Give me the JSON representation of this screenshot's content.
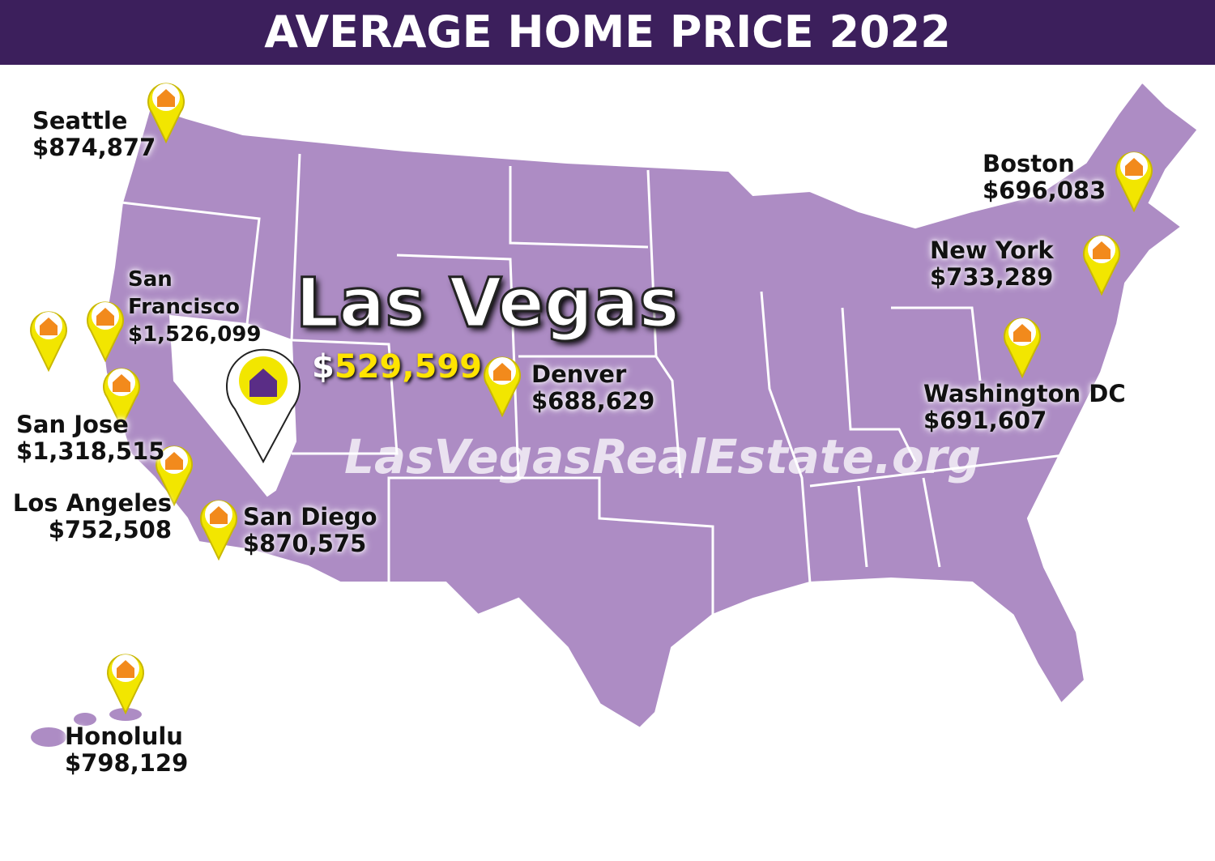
{
  "title": "AVERAGE HOME PRICE 2022",
  "featured": {
    "name": "Las Vegas",
    "price_symbol": "$",
    "price": "529,599"
  },
  "watermark": "LasVegasRealEstate.org",
  "cities": [
    {
      "name": "Seattle",
      "price": "$874,877"
    },
    {
      "name": "San Francisco",
      "price": "$1,526,099"
    },
    {
      "name": "San Jose",
      "price": "$1,318,515"
    },
    {
      "name": "Los Angeles",
      "price": "$752,508"
    },
    {
      "name": "San Diego",
      "price": "$870,575"
    },
    {
      "name": "Denver",
      "price": "$688,629"
    },
    {
      "name": "Boston",
      "price": "$696,083"
    },
    {
      "name": "New York",
      "price": "$733,289"
    },
    {
      "name": "Washington DC",
      "price": "$691,607"
    },
    {
      "name": "Honolulu",
      "price": "$798,129"
    }
  ]
}
